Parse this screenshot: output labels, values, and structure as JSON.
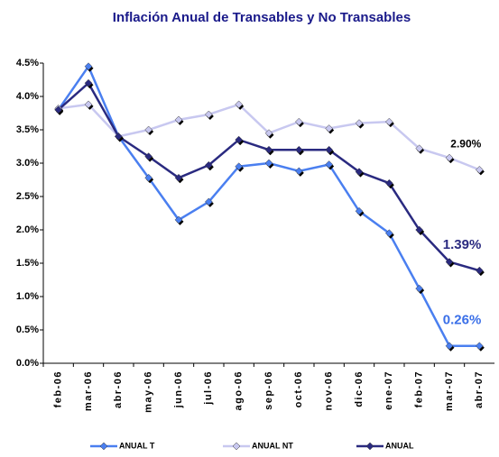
{
  "chart_data": {
    "type": "line",
    "title": "Inflación Anual de Transables y No Transables",
    "categories": [
      "feb-06",
      "mar-06",
      "abr-06",
      "may-06",
      "jun-06",
      "jul-06",
      "ago-06",
      "sep-06",
      "oct-06",
      "nov-06",
      "dic-06",
      "ene-07",
      "feb-07",
      "mar-07",
      "abr-07"
    ],
    "series": [
      {
        "name": "ANUAL T",
        "color": "#4a7ff0",
        "label_color": "#3a6fe8",
        "values": [
          3.8,
          4.45,
          3.4,
          2.78,
          2.15,
          2.42,
          2.95,
          3.0,
          2.88,
          2.98,
          2.28,
          1.95,
          1.12,
          0.26,
          0.26
        ],
        "value_labels": [
          null,
          null,
          null,
          null,
          null,
          null,
          null,
          null,
          null,
          null,
          null,
          null,
          null,
          null,
          "0.26%"
        ]
      },
      {
        "name": "ANUAL NT",
        "color": "#c8c8f0",
        "label_color": "#000000",
        "values": [
          3.82,
          3.88,
          3.4,
          3.5,
          3.65,
          3.73,
          3.88,
          3.45,
          3.62,
          3.52,
          3.6,
          3.62,
          3.22,
          3.08,
          2.9
        ],
        "value_labels": [
          null,
          null,
          null,
          null,
          null,
          null,
          null,
          null,
          null,
          null,
          null,
          null,
          null,
          null,
          "2.90%"
        ]
      },
      {
        "name": "ANUAL",
        "color": "#2a2a80",
        "label_color": "#2a2a80",
        "values": [
          3.8,
          4.2,
          3.4,
          3.1,
          2.78,
          2.97,
          3.35,
          3.2,
          3.2,
          3.2,
          2.87,
          2.7,
          2.0,
          1.52,
          1.39
        ],
        "value_labels": [
          null,
          null,
          null,
          null,
          null,
          null,
          null,
          null,
          null,
          null,
          null,
          null,
          null,
          null,
          "1.39%"
        ]
      }
    ],
    "ylim": [
      0,
      4.5
    ],
    "yticks": [
      {
        "value": 0,
        "label": "0.0%"
      },
      {
        "value": 0.5,
        "label": "0.5%"
      },
      {
        "value": 1,
        "label": "1.0%"
      },
      {
        "value": 1.5,
        "label": "1.5%"
      },
      {
        "value": 2,
        "label": "2.0%"
      },
      {
        "value": 2.5,
        "label": "2.5%"
      },
      {
        "value": 3,
        "label": "3.0%"
      },
      {
        "value": 3.5,
        "label": "3.5%"
      },
      {
        "value": 4,
        "label": "4.0%"
      },
      {
        "value": 4.5,
        "label": "4.5%"
      }
    ],
    "grid": false,
    "legend": "bottom"
  }
}
